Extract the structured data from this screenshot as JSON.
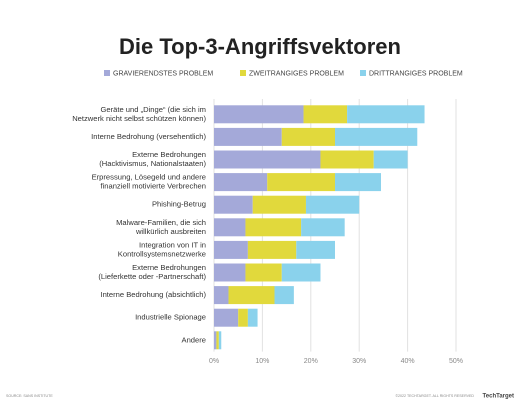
{
  "chart_data": {
    "type": "stacked-bar-horizontal",
    "title": "Die Top-3-Angriffsvektoren",
    "categories": [
      [
        "Geräte und „Dinge“ (die sich im",
        "Netzwerk nicht selbst schützen können)"
      ],
      [
        "Interne Bedrohung (versehentlich)"
      ],
      [
        "Externe Bedrohungen",
        "(Hacktivismus, Nationalstaaten)"
      ],
      [
        "Erpressung, Lösegeld und andere",
        "finanziell motivierte Verbrechen"
      ],
      [
        "Phishing-Betrug"
      ],
      [
        "Malware-Familien, die sich",
        "willkürlich ausbreiten"
      ],
      [
        "Integration von IT in",
        "Kontrollsystemsnetzwerke"
      ],
      [
        "Externe Bedrohungen",
        "(Lieferkette oder -Partnerschaft)"
      ],
      [
        "Interne Bedrohung (absichtlich)"
      ],
      [
        "Industrielle Spionage"
      ],
      [
        "Andere"
      ]
    ],
    "series": [
      {
        "name": "GRAVIERENDSTES PROBLEM",
        "color": "#a4a9d9",
        "values": [
          18.5,
          14,
          22,
          11,
          8,
          6.5,
          7,
          6.5,
          3,
          5,
          0.5
        ]
      },
      {
        "name": "ZWEITRANGIGES PROBLEM",
        "color": "#e1d93c",
        "values": [
          9,
          11,
          11,
          14,
          11,
          11.5,
          10,
          7.5,
          9.5,
          2,
          0.5
        ]
      },
      {
        "name": "DRITTRANGIGES PROBLEM",
        "color": "#8ad2ec",
        "values": [
          16,
          17,
          7,
          9.5,
          11,
          9,
          8,
          8,
          4,
          2,
          0.5
        ]
      }
    ],
    "xlim": [
      0,
      50
    ],
    "xticks": [
      {
        "value": 0,
        "label": "0%"
      },
      {
        "value": 10,
        "label": "10%"
      },
      {
        "value": 20,
        "label": "20%"
      },
      {
        "value": 30,
        "label": "30%"
      },
      {
        "value": 40,
        "label": "40%"
      },
      {
        "value": 50,
        "label": "50%"
      }
    ],
    "grid": true,
    "source": "SOURCE: SANS INSTITUTE",
    "copyright": "©2022 TECHTARGET. ALL RIGHTS RESERVED",
    "logo": "TechTarget"
  }
}
